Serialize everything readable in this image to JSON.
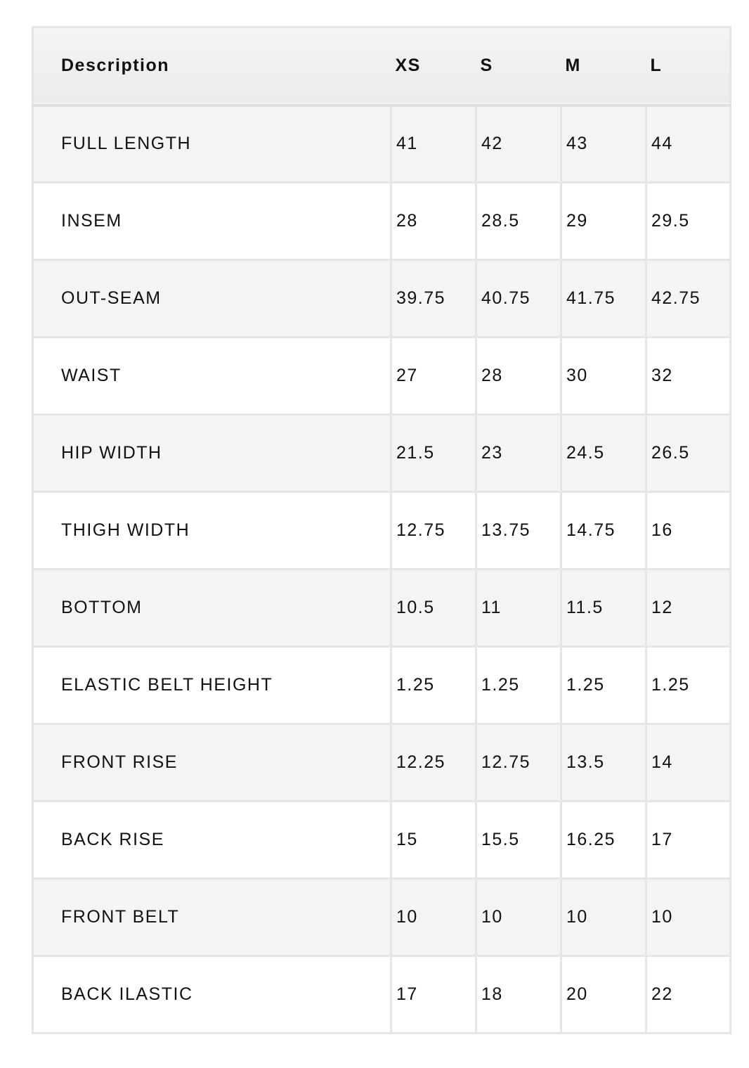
{
  "headers": [
    "Description",
    "XS",
    "S",
    "M",
    "L"
  ],
  "rows": [
    [
      "FULL LENGTH",
      "41",
      "42",
      "43",
      "44"
    ],
    [
      "INSEM",
      "28",
      "28.5",
      "29",
      "29.5"
    ],
    [
      "OUT-SEAM",
      "39.75",
      "40.75",
      "41.75",
      "42.75"
    ],
    [
      "WAIST",
      "27",
      "28",
      "30",
      "32"
    ],
    [
      "HIP WIDTH",
      "21.5",
      "23",
      "24.5",
      "26.5"
    ],
    [
      "THIGH WIDTH",
      "12.75",
      "13.75",
      "14.75",
      "16"
    ],
    [
      "BOTTOM",
      "10.5",
      "11",
      "11.5",
      "12"
    ],
    [
      "ELASTIC BELT HEIGHT",
      "1.25",
      "1.25",
      "1.25",
      "1.25"
    ],
    [
      "FRONT RISE",
      "12.25",
      "12.75",
      "13.5",
      "14"
    ],
    [
      "BACK RISE",
      "15",
      "15.5",
      "16.25",
      "17"
    ],
    [
      "FRONT BELT",
      "10",
      "10",
      "10",
      "10"
    ],
    [
      "BACK ILASTIC",
      "17",
      "18",
      "20",
      "22"
    ]
  ]
}
